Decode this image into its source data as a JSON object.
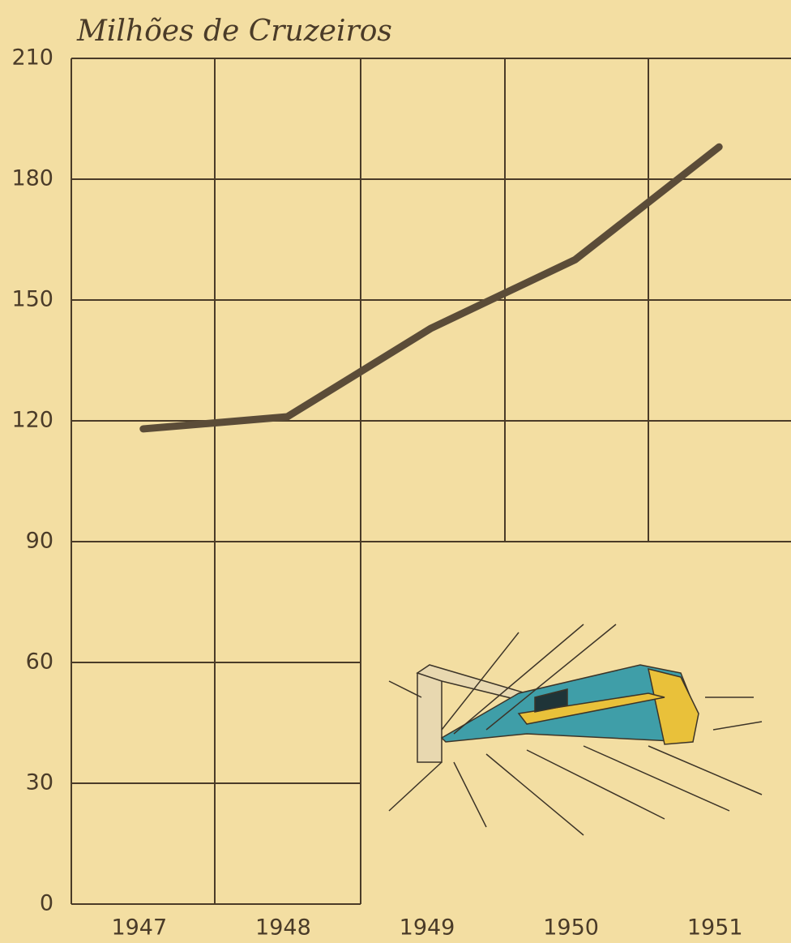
{
  "chart_data": {
    "type": "line",
    "title": "Milhões de Cruzeiros",
    "categories": [
      "1947",
      "1948",
      "1949",
      "1950",
      "1951"
    ],
    "series": [
      {
        "name": "Milhões de Cruzeiros",
        "color": "#5b4c38",
        "values": [
          118,
          121,
          143,
          160,
          188
        ]
      }
    ],
    "ylim": [
      0,
      210
    ],
    "yticks": [
      0,
      30,
      60,
      90,
      120,
      150,
      180,
      210
    ],
    "grid": true
  }
}
